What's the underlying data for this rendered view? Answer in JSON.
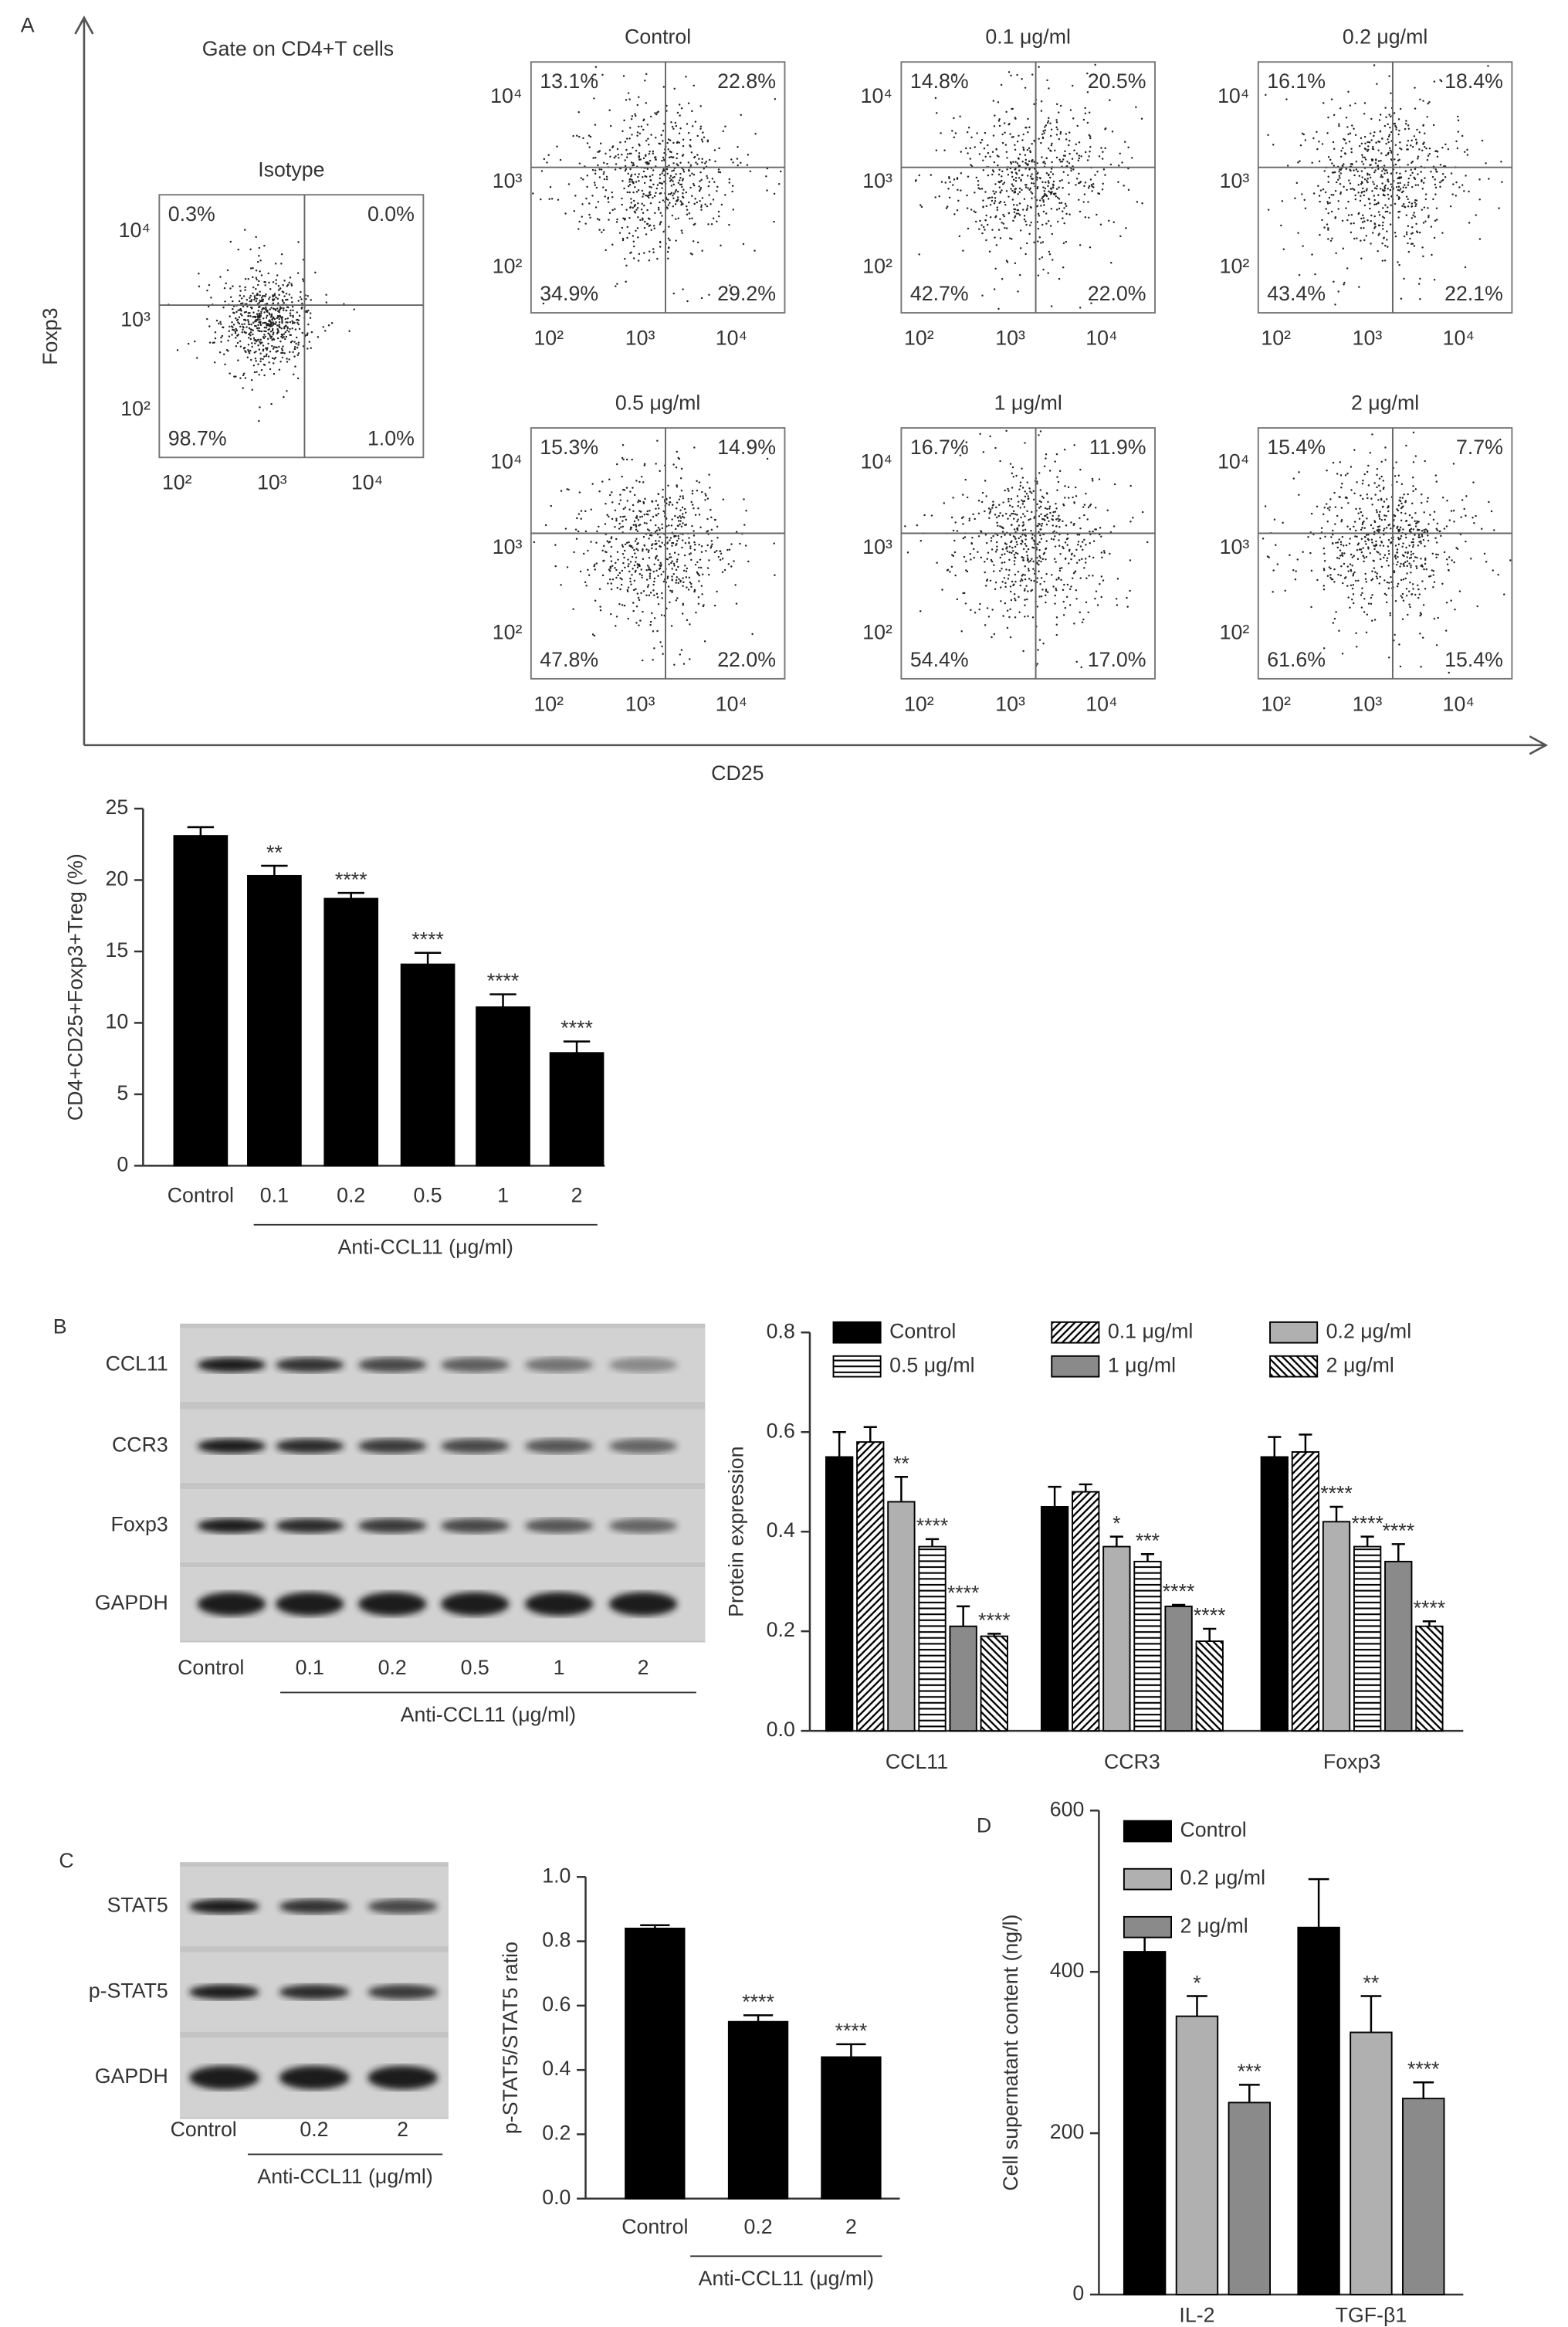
{
  "panel_labels": [
    "A",
    "B",
    "C",
    "D"
  ],
  "flow": {
    "gate_label": "Gate on CD4+T cells",
    "x_label": "CD25",
    "y_label": "Foxp3",
    "ticks": [
      {
        "value": 100,
        "label": "10²"
      },
      {
        "value": 1000,
        "label": "10³"
      },
      {
        "value": 10000,
        "label": "10⁴"
      }
    ],
    "plots": [
      {
        "title": "Isotype",
        "quadrants": [
          "0.3%",
          "0.0%",
          "98.7%",
          "1.0%"
        ]
      },
      {
        "title": "Control",
        "quadrants": [
          "13.1%",
          "22.8%",
          "34.9%",
          "29.2%"
        ]
      },
      {
        "title": "0.1 μg/ml",
        "quadrants": [
          "14.8%",
          "20.5%",
          "42.7%",
          "22.0%"
        ]
      },
      {
        "title": "0.2 μg/ml",
        "quadrants": [
          "16.1%",
          "18.4%",
          "43.4%",
          "22.1%"
        ]
      },
      {
        "title": "0.5 μg/ml",
        "quadrants": [
          "15.3%",
          "14.9%",
          "47.8%",
          "22.0%"
        ]
      },
      {
        "title": "1 μg/ml",
        "quadrants": [
          "16.7%",
          "11.9%",
          "54.4%",
          "17.0%"
        ]
      },
      {
        "title": "2 μg/ml",
        "quadrants": [
          "15.4%",
          "7.7%",
          "61.6%",
          "15.4%"
        ]
      }
    ]
  },
  "blot_b": {
    "rows": [
      "CCL11",
      "CCR3",
      "Foxp3",
      "GAPDH"
    ],
    "lanes": [
      "Control",
      "0.1",
      "0.2",
      "0.5",
      "1",
      "2"
    ],
    "group_label": "Anti-CCL11 (μg/ml)"
  },
  "blot_c": {
    "rows": [
      "STAT5",
      "p-STAT5",
      "GAPDH"
    ],
    "lanes": [
      "Control",
      "0.2",
      "2"
    ],
    "group_label": "Anti-CCL11 (μg/ml)"
  },
  "chart_data": [
    {
      "type": "bar",
      "y_label": "CD4+CD25+Foxp3+Treg (%)",
      "group_label": "Anti-CCL11 (μg/ml)",
      "categories": [
        "Control",
        "0.1",
        "0.2",
        "0.5",
        "1",
        "2"
      ],
      "values": [
        23.1,
        20.3,
        18.7,
        14.1,
        11.1,
        7.9
      ],
      "errors": [
        0.6,
        0.7,
        0.4,
        0.8,
        0.9,
        0.8
      ],
      "significance": [
        null,
        "**",
        "****",
        "****",
        "****",
        "****"
      ],
      "color": "#000000",
      "ylim": [
        0,
        25
      ],
      "yticks": [
        0,
        5,
        10,
        15,
        20,
        25
      ]
    },
    {
      "type": "grouped_bar",
      "y_label": "Protein expression",
      "categories": [
        "CCL11",
        "CCR3",
        "Foxp3"
      ],
      "series": [
        {
          "name": "Control",
          "color": "#000000",
          "pattern": "solid",
          "values": [
            0.55,
            0.45,
            0.55
          ],
          "errors": [
            0.05,
            0.04,
            0.04
          ],
          "significance": [
            null,
            null,
            null
          ]
        },
        {
          "name": "0.1 μg/ml",
          "color": "#ffffff",
          "pattern": "diagonal",
          "values": [
            0.58,
            0.48,
            0.56
          ],
          "errors": [
            0.03,
            0.015,
            0.035
          ],
          "significance": [
            null,
            null,
            null
          ]
        },
        {
          "name": "0.2 μg/ml",
          "color": "#b0b0b0",
          "pattern": "solid",
          "values": [
            0.46,
            0.37,
            0.42
          ],
          "errors": [
            0.05,
            0.02,
            0.03
          ],
          "significance": [
            "**",
            "*",
            "****"
          ]
        },
        {
          "name": "0.5 μg/ml",
          "color": "#ffffff",
          "pattern": "horizontal",
          "values": [
            0.37,
            0.34,
            0.37
          ],
          "errors": [
            0.015,
            0.015,
            0.02
          ],
          "significance": [
            "****",
            "***",
            "****"
          ]
        },
        {
          "name": "1 μg/ml",
          "color": "#8a8a8a",
          "pattern": "solid",
          "values": [
            0.21,
            0.25,
            0.34
          ],
          "errors": [
            0.04,
            0.003,
            0.035
          ],
          "significance": [
            "****",
            "****",
            "****"
          ]
        },
        {
          "name": "2 μg/ml",
          "color": "#ffffff",
          "pattern": "back-diagonal",
          "values": [
            0.19,
            0.18,
            0.21
          ],
          "errors": [
            0.005,
            0.025,
            0.01
          ],
          "significance": [
            "****",
            "****",
            "****"
          ]
        }
      ],
      "ylim": [
        0,
        0.8
      ],
      "yticks": [
        {
          "value": 0,
          "label": "0.0"
        },
        0.2,
        0.4,
        0.6,
        0.8
      ]
    },
    {
      "type": "bar",
      "y_label": "p-STAT5/STAT5 ratio",
      "group_label": "Anti-CCL11 (μg/ml)",
      "categories": [
        "Control",
        "0.2",
        "2"
      ],
      "values": [
        0.84,
        0.55,
        0.44
      ],
      "errors": [
        0.01,
        0.02,
        0.04
      ],
      "significance": [
        null,
        "****",
        "****"
      ],
      "color": "#000000",
      "ylim": [
        0,
        1
      ],
      "yticks": [
        {
          "value": 0,
          "label": "0.0"
        },
        0.2,
        0.4,
        0.6,
        0.8,
        {
          "value": 1,
          "label": "1.0"
        }
      ]
    },
    {
      "type": "grouped_bar",
      "y_label": "Cell supernatant content (ng/l)",
      "categories": [
        "IL-2",
        "TGF-β1"
      ],
      "series": [
        {
          "name": "Control",
          "color": "#000000",
          "pattern": "solid",
          "values": [
            425,
            455
          ],
          "errors": [
            20,
            60
          ],
          "significance": [
            null,
            null
          ]
        },
        {
          "name": "0.2 μg/ml",
          "color": "#b0b0b0",
          "pattern": "solid",
          "values": [
            345,
            325
          ],
          "errors": [
            25,
            45
          ],
          "significance": [
            "*",
            "**"
          ]
        },
        {
          "name": "2 μg/ml",
          "color": "#8a8a8a",
          "pattern": "solid",
          "values": [
            238,
            243
          ],
          "errors": [
            22,
            20
          ],
          "significance": [
            "***",
            "****"
          ]
        }
      ],
      "ylim": [
        0,
        600
      ],
      "yticks": [
        0,
        200,
        400,
        600
      ]
    }
  ]
}
